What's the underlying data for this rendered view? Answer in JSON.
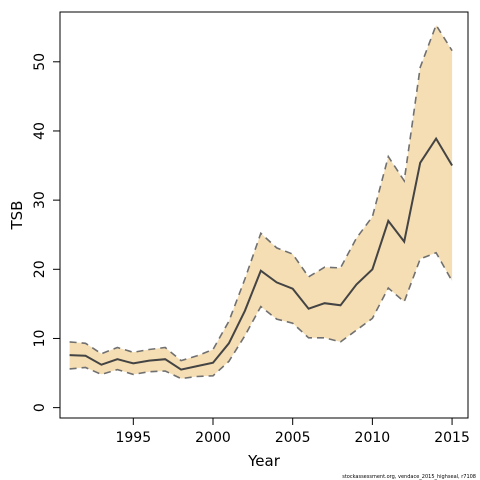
{
  "chart_data": {
    "type": "area",
    "title": "",
    "xlabel": "Year",
    "ylabel": "TSB",
    "xlim": [
      1990.4,
      2016.0
    ],
    "ylim": [
      -1.5,
      57.2
    ],
    "x_ticks": [
      1995,
      2000,
      2005,
      2010,
      2015
    ],
    "y_ticks": [
      0,
      10,
      20,
      30,
      40,
      50
    ],
    "grid": false,
    "legend": "none",
    "x": [
      1991,
      1992,
      1993,
      1994,
      1995,
      1996,
      1997,
      1998,
      1999,
      2000,
      2001,
      2002,
      2003,
      2004,
      2005,
      2006,
      2007,
      2008,
      2009,
      2010,
      2011,
      2012,
      2013,
      2014,
      2015
    ],
    "series": [
      {
        "role": "estimate",
        "values": [
          7.6,
          7.5,
          6.2,
          7.0,
          6.4,
          6.8,
          7.0,
          5.5,
          6.0,
          6.5,
          9.3,
          14.0,
          19.8,
          18.1,
          17.2,
          14.3,
          15.1,
          14.8,
          17.8,
          20.0,
          27.0,
          24.0,
          35.4,
          38.9,
          35.0
        ]
      },
      {
        "role": "upper",
        "values": [
          9.5,
          9.3,
          7.8,
          8.7,
          8.0,
          8.4,
          8.7,
          6.8,
          7.5,
          8.4,
          12.5,
          18.6,
          25.2,
          23.1,
          22.2,
          18.9,
          20.3,
          20.2,
          24.5,
          27.6,
          36.3,
          32.8,
          49.2,
          55.3,
          51.6
        ]
      },
      {
        "role": "lower",
        "values": [
          5.6,
          5.8,
          4.8,
          5.5,
          4.8,
          5.2,
          5.3,
          4.2,
          4.5,
          4.6,
          6.7,
          10.4,
          14.6,
          12.8,
          12.2,
          10.1,
          10.1,
          9.5,
          11.2,
          12.9,
          17.3,
          15.3,
          21.5,
          22.4,
          18.3
        ]
      }
    ],
    "colors": {
      "band_fill": "#f5deb3",
      "band_border": "#707070",
      "estimate_line": "#444444",
      "axis": "#000000"
    },
    "credit": "stockassessment.org, vendace_2015_highseal, r7108"
  }
}
